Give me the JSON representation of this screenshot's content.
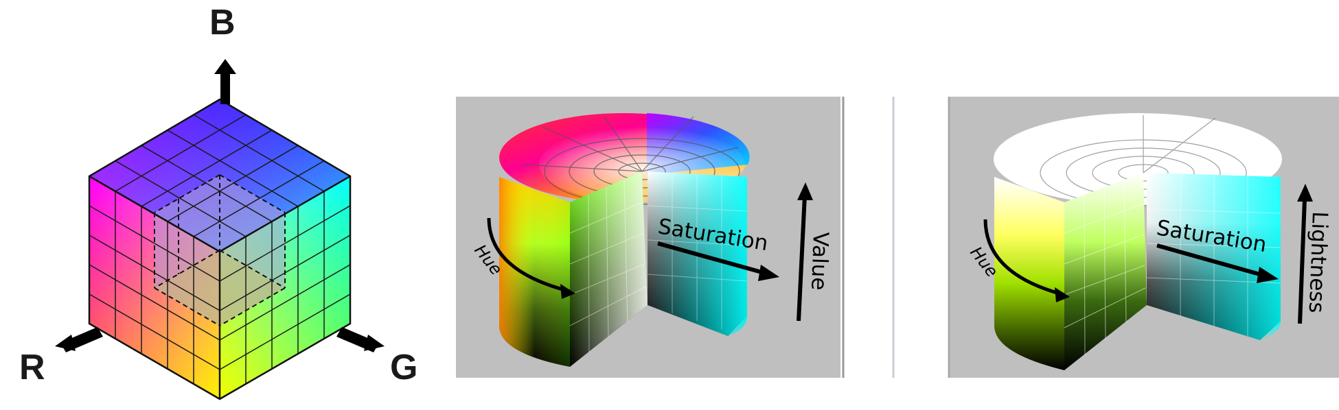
{
  "rgb_cube": {
    "axis_b": "B",
    "axis_r": "R",
    "axis_g": "G"
  },
  "hsv_cylinder": {
    "hue": "Hue",
    "saturation": "Saturation",
    "value": "Value"
  },
  "hsl_cylinder": {
    "hue": "Hue",
    "saturation": "Saturation",
    "lightness": "Lightness"
  },
  "colors": {
    "panel_background": "#bfbfbf",
    "arrow": "#000000",
    "cube_corner_black_hidden": "#000000",
    "cube_top_front": "#ff00ff",
    "cube_blue": "#0000ff",
    "cube_cyan": "#00ffff",
    "cube_red": "#ff0000",
    "cube_white": "#ffffff",
    "cube_green": "#00ff00",
    "cube_yellow": "#ffff00"
  }
}
